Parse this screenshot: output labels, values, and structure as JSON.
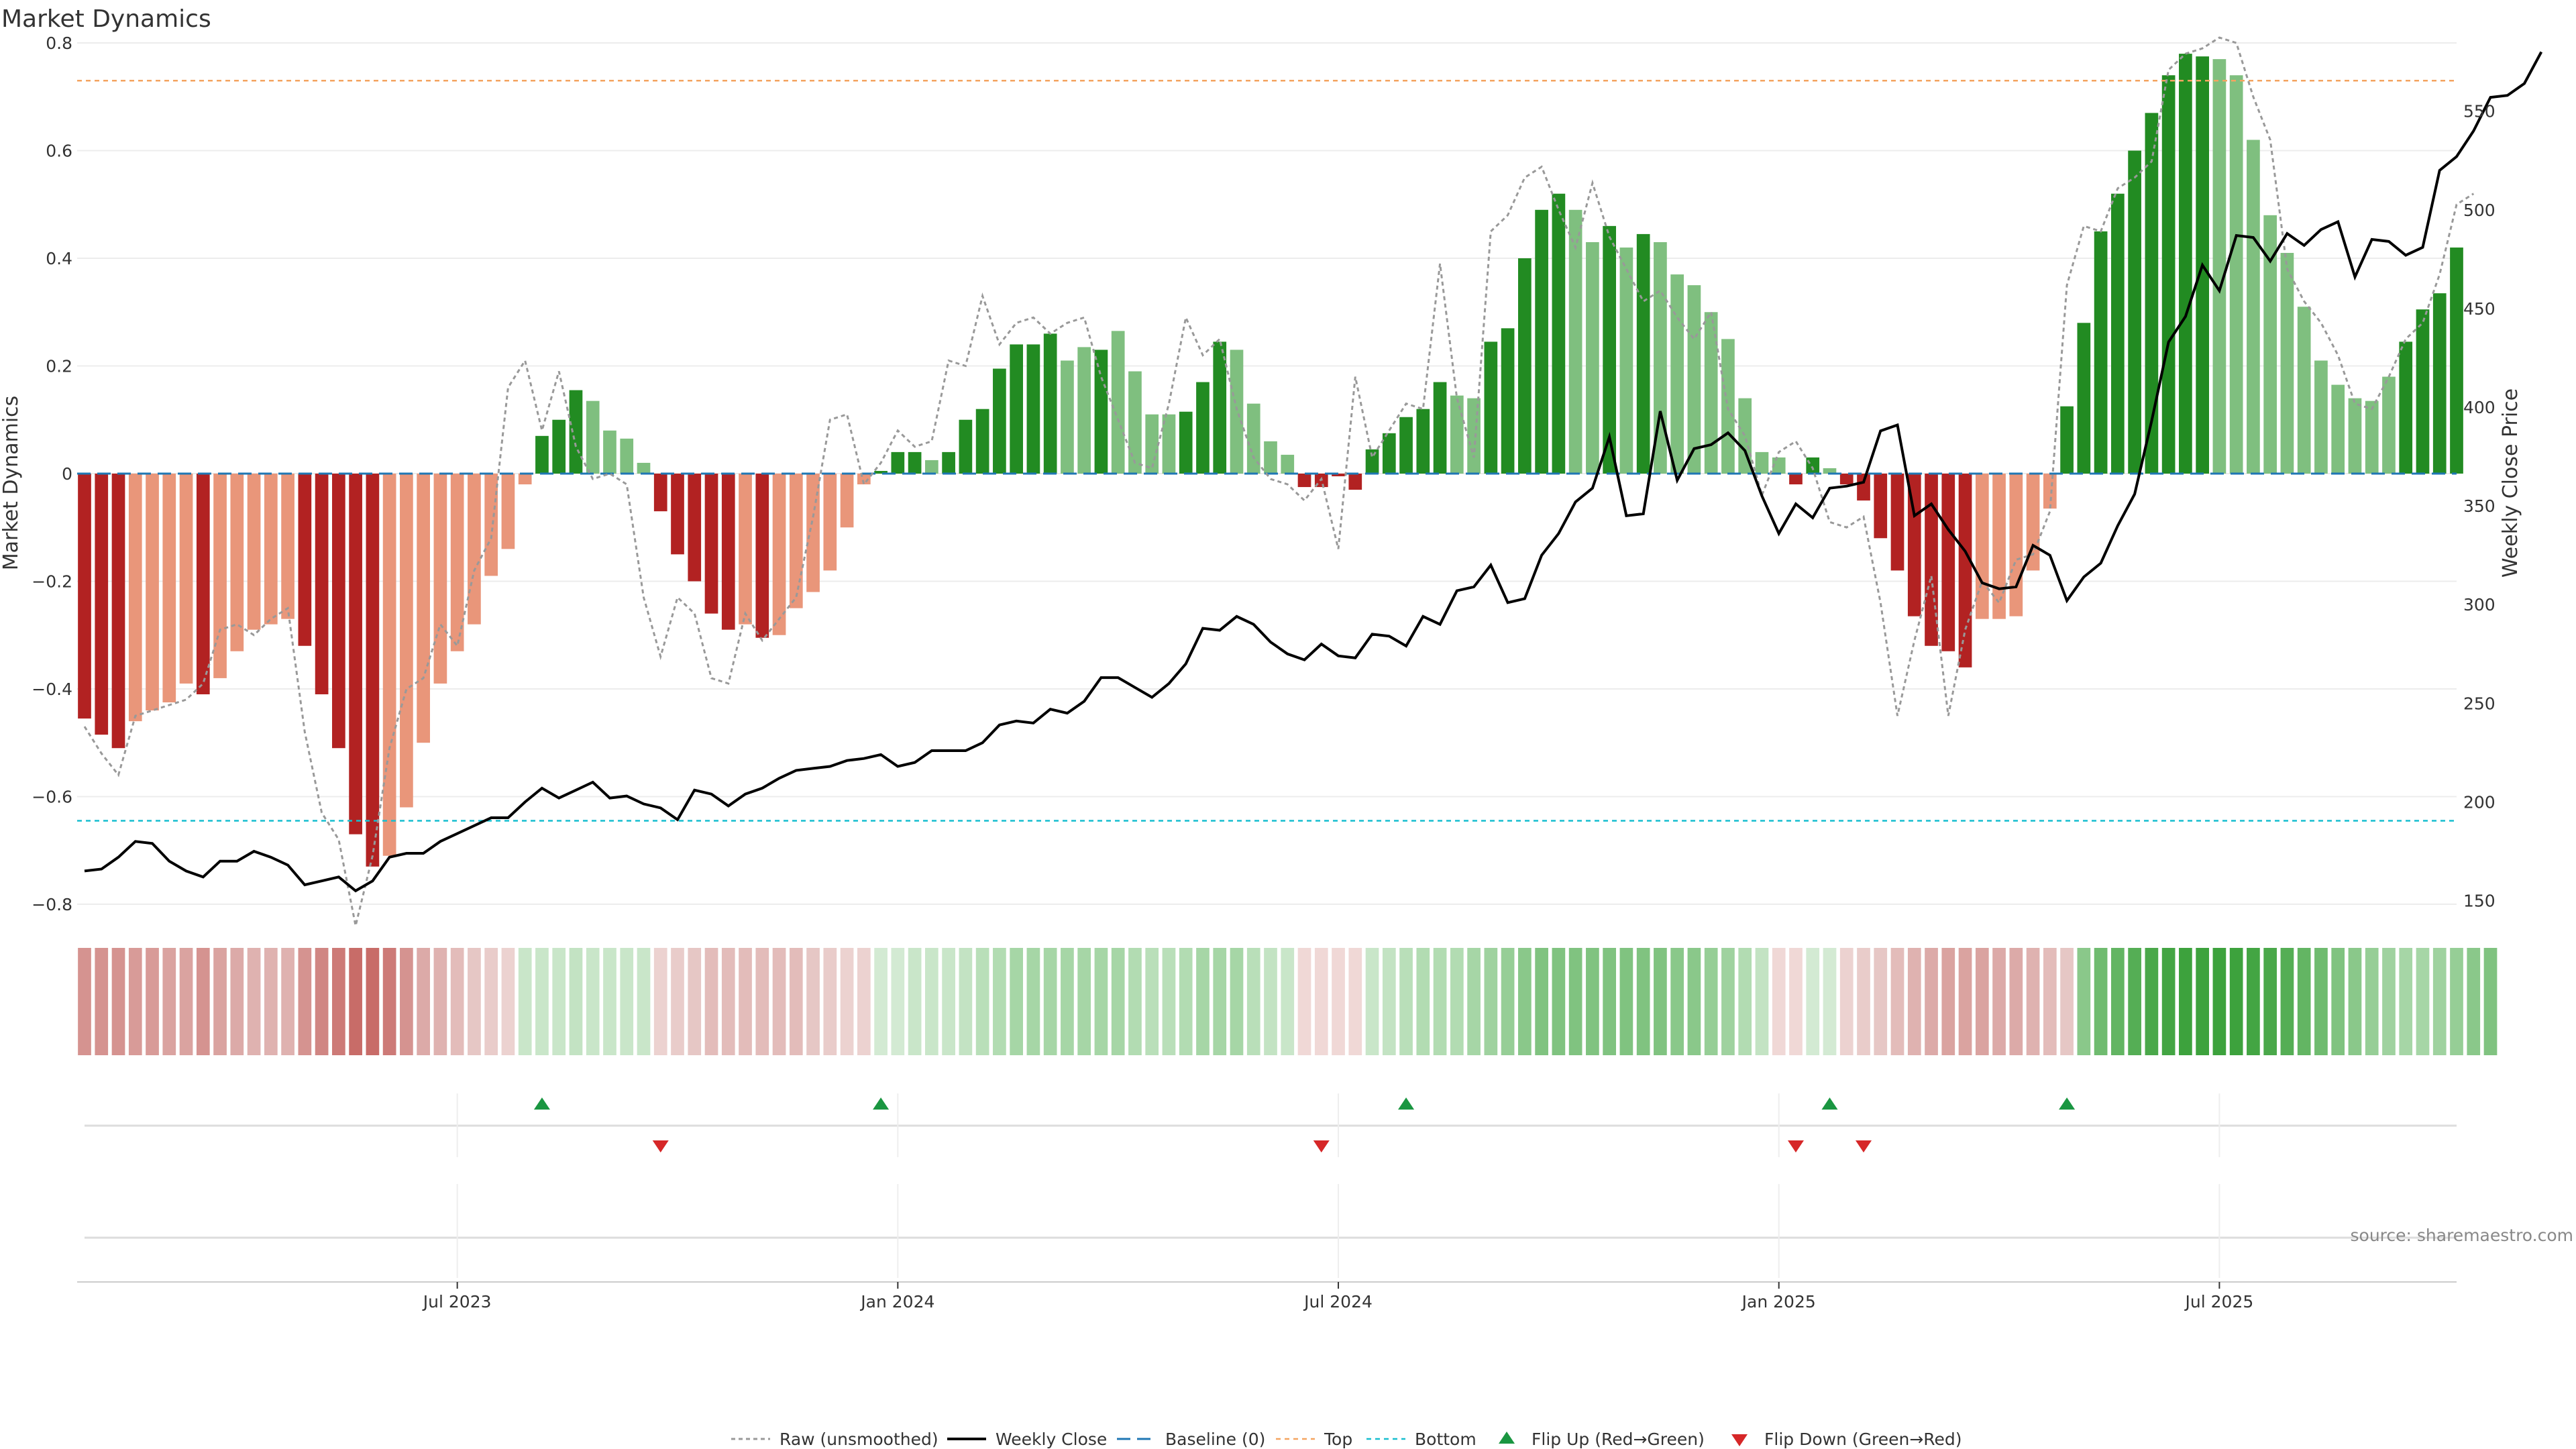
{
  "chart_data": {
    "type": "bar",
    "title": "Market Dynamics",
    "ylabel_left": "Market Dynamics",
    "ylabel_right": "Weekly Close Price",
    "source": "source: sharemaestro.com",
    "ylim_left": [
      -0.83,
      0.82
    ],
    "ylim_right": [
      140,
      590
    ],
    "left_ticks": [
      {
        "v": 0.8,
        "label": "0.8"
      },
      {
        "v": 0.6,
        "label": "0.6"
      },
      {
        "v": 0.4,
        "label": "0.4"
      },
      {
        "v": 0.2,
        "label": "0.2"
      },
      {
        "v": 0,
        "label": "0"
      },
      {
        "v": -0.2,
        "label": "−0.2"
      },
      {
        "v": -0.4,
        "label": "−0.4"
      },
      {
        "v": -0.6,
        "label": "−0.6"
      },
      {
        "v": -0.8,
        "label": "−0.8"
      }
    ],
    "right_ticks": [
      {
        "v": 550,
        "label": "550"
      },
      {
        "v": 500,
        "label": "500"
      },
      {
        "v": 450,
        "label": "450"
      },
      {
        "v": 400,
        "label": "400"
      },
      {
        "v": 350,
        "label": "350"
      },
      {
        "v": 300,
        "label": "300"
      },
      {
        "v": 250,
        "label": "250"
      },
      {
        "v": 200,
        "label": "200"
      },
      {
        "v": 150,
        "label": "150"
      }
    ],
    "x_ticks": [
      {
        "i": 22,
        "label": "Jul 2023"
      },
      {
        "i": 48,
        "label": "Jan 2024"
      },
      {
        "i": 74,
        "label": "Jul 2024"
      },
      {
        "i": 100,
        "label": "Jan 2025"
      },
      {
        "i": 126,
        "label": "Jul 2025"
      }
    ],
    "top_level": 0.73,
    "bottom_level": -0.645,
    "bar_values": [
      -0.455,
      -0.485,
      -0.51,
      -0.46,
      -0.44,
      -0.425,
      -0.39,
      -0.41,
      -0.38,
      -0.33,
      -0.29,
      -0.28,
      -0.27,
      -0.32,
      -0.41,
      -0.51,
      -0.67,
      -0.73,
      -0.71,
      -0.62,
      -0.5,
      -0.39,
      -0.33,
      -0.28,
      -0.19,
      -0.14,
      -0.02,
      0.07,
      0.1,
      0.155,
      0.135,
      0.08,
      0.065,
      0.02,
      -0.07,
      -0.15,
      -0.2,
      -0.26,
      -0.29,
      -0.28,
      -0.305,
      -0.3,
      -0.25,
      -0.22,
      -0.18,
      -0.1,
      -0.02,
      0.005,
      0.04,
      0.04,
      0.025,
      0.04,
      0.1,
      0.12,
      0.195,
      0.24,
      0.24,
      0.26,
      0.21,
      0.235,
      0.23,
      0.265,
      0.19,
      0.11,
      0.11,
      0.115,
      0.17,
      0.245,
      0.23,
      0.13,
      0.06,
      0.035,
      -0.025,
      -0.025,
      -0.005,
      -0.03,
      0.045,
      0.075,
      0.105,
      0.12,
      0.17,
      0.145,
      0.14,
      0.245,
      0.27,
      0.4,
      0.49,
      0.52,
      0.49,
      0.43,
      0.46,
      0.42,
      0.445,
      0.43,
      0.37,
      0.35,
      0.3,
      0.25,
      0.14,
      0.04,
      0.03,
      -0.02,
      0.03,
      0.01,
      -0.02,
      -0.05,
      -0.12,
      -0.18,
      -0.265,
      -0.32,
      -0.33,
      -0.36,
      -0.27,
      -0.27,
      -0.265,
      -0.18,
      -0.065,
      0.125,
      0.28,
      0.45,
      0.52,
      0.6,
      0.67,
      0.74,
      0.78,
      0.775,
      0.77,
      0.74,
      0.62,
      0.48,
      0.41,
      0.31,
      0.21,
      0.165,
      0.14,
      0.135,
      0.18,
      0.245,
      0.305,
      0.335,
      0.42
    ],
    "bar_colors": [
      "#b22222",
      "#b22222",
      "#b22222",
      "#e9967a",
      "#e9967a",
      "#e9967a",
      "#e9967a",
      "#b22222",
      "#e9967a",
      "#e9967a",
      "#e9967a",
      "#e9967a",
      "#e9967a",
      "#b22222",
      "#b22222",
      "#b22222",
      "#b22222",
      "#b22222",
      "#e9967a",
      "#e9967a",
      "#e9967a",
      "#e9967a",
      "#e9967a",
      "#e9967a",
      "#e9967a",
      "#e9967a",
      "#e9967a",
      "#228b22",
      "#228b22",
      "#228b22",
      "#7fbf7f",
      "#7fbf7f",
      "#7fbf7f",
      "#7fbf7f",
      "#b22222",
      "#b22222",
      "#b22222",
      "#b22222",
      "#b22222",
      "#e9967a",
      "#b22222",
      "#e9967a",
      "#e9967a",
      "#e9967a",
      "#e9967a",
      "#e9967a",
      "#e9967a",
      "#228b22",
      "#228b22",
      "#228b22",
      "#7fbf7f",
      "#228b22",
      "#228b22",
      "#228b22",
      "#228b22",
      "#228b22",
      "#228b22",
      "#228b22",
      "#7fbf7f",
      "#7fbf7f",
      "#228b22",
      "#7fbf7f",
      "#7fbf7f",
      "#7fbf7f",
      "#7fbf7f",
      "#228b22",
      "#228b22",
      "#228b22",
      "#7fbf7f",
      "#7fbf7f",
      "#7fbf7f",
      "#7fbf7f",
      "#b22222",
      "#b22222",
      "#b22222",
      "#b22222",
      "#228b22",
      "#228b22",
      "#228b22",
      "#228b22",
      "#228b22",
      "#7fbf7f",
      "#7fbf7f",
      "#228b22",
      "#228b22",
      "#228b22",
      "#228b22",
      "#228b22",
      "#7fbf7f",
      "#7fbf7f",
      "#228b22",
      "#7fbf7f",
      "#228b22",
      "#7fbf7f",
      "#7fbf7f",
      "#7fbf7f",
      "#7fbf7f",
      "#7fbf7f",
      "#7fbf7f",
      "#7fbf7f",
      "#7fbf7f",
      "#b22222",
      "#228b22",
      "#7fbf7f",
      "#b22222",
      "#b22222",
      "#b22222",
      "#b22222",
      "#b22222",
      "#b22222",
      "#b22222",
      "#b22222",
      "#e9967a",
      "#e9967a",
      "#e9967a",
      "#e9967a",
      "#e9967a",
      "#228b22",
      "#228b22",
      "#228b22",
      "#228b22",
      "#228b22",
      "#228b22",
      "#228b22",
      "#228b22",
      "#228b22",
      "#7fbf7f",
      "#7fbf7f",
      "#7fbf7f",
      "#7fbf7f",
      "#7fbf7f",
      "#7fbf7f",
      "#7fbf7f",
      "#7fbf7f",
      "#7fbf7f",
      "#7fbf7f",
      "#7fbf7f",
      "#228b22",
      "#228b22",
      "#228b22",
      "#228b22",
      "#228b22"
    ],
    "raw_values": [
      -0.47,
      -0.52,
      -0.56,
      -0.45,
      -0.44,
      -0.43,
      -0.42,
      -0.39,
      -0.29,
      -0.28,
      -0.3,
      -0.27,
      -0.25,
      -0.48,
      -0.63,
      -0.68,
      -0.84,
      -0.71,
      -0.51,
      -0.4,
      -0.38,
      -0.28,
      -0.32,
      -0.18,
      -0.12,
      0.16,
      0.21,
      0.08,
      0.19,
      0.05,
      -0.01,
      0,
      -0.02,
      -0.23,
      -0.34,
      -0.23,
      -0.26,
      -0.38,
      -0.39,
      -0.26,
      -0.31,
      -0.27,
      -0.23,
      -0.08,
      0.1,
      0.11,
      -0.02,
      0.02,
      0.08,
      0.05,
      0.06,
      0.21,
      0.2,
      0.33,
      0.24,
      0.28,
      0.29,
      0.26,
      0.28,
      0.29,
      0.18,
      0.1,
      0.02,
      0.01,
      0.13,
      0.29,
      0.22,
      0.25,
      0.12,
      0.03,
      -0.01,
      -0.02,
      -0.05,
      -0.01,
      -0.14,
      0.18,
      0.03,
      0.08,
      0.13,
      0.12,
      0.39,
      0.14,
      0.03,
      0.45,
      0.48,
      0.55,
      0.57,
      0.49,
      0.42,
      0.54,
      0.44,
      0.38,
      0.32,
      0.34,
      0.29,
      0.25,
      0.3,
      0.12,
      0.07,
      -0.04,
      0.04,
      0.06,
      0.01,
      -0.09,
      -0.1,
      -0.08,
      -0.24,
      -0.45,
      -0.31,
      -0.19,
      -0.45,
      -0.29,
      -0.2,
      -0.24,
      -0.16,
      -0.15,
      -0.07,
      0.35,
      0.46,
      0.45,
      0.53,
      0.55,
      0.58,
      0.75,
      0.78,
      0.79,
      0.81,
      0.8,
      0.7,
      0.62,
      0.38,
      0.32,
      0.28,
      0.22,
      0.13,
      0.12,
      0.18,
      0.25,
      0.28,
      0.37,
      0.5,
      0.52
    ],
    "close_values": [
      165,
      166,
      172,
      180,
      179,
      170,
      165,
      162,
      170,
      170,
      175,
      172,
      168,
      158,
      160,
      162,
      155,
      160,
      172,
      174,
      174,
      180,
      184,
      188,
      192,
      192,
      200,
      207,
      202,
      206,
      210,
      202,
      203,
      199,
      197,
      191,
      206,
      204,
      198,
      204,
      207,
      212,
      216,
      217,
      218,
      221,
      222,
      224,
      218,
      220,
      226,
      226,
      226,
      230,
      239,
      241,
      240,
      247,
      245,
      251,
      263,
      263,
      258,
      253,
      260,
      270,
      288,
      287,
      294,
      290,
      281,
      275,
      272,
      280,
      274,
      273,
      285,
      284,
      279,
      294,
      290,
      307,
      309,
      320,
      301,
      303,
      325,
      336,
      352,
      359,
      385,
      345,
      346,
      398,
      363,
      379,
      381,
      387,
      378,
      355,
      336,
      351,
      344,
      359,
      360,
      362,
      388,
      391,
      345,
      351,
      338,
      327,
      311,
      308,
      309,
      330,
      325,
      302,
      314,
      321,
      340,
      356,
      393,
      433,
      446,
      472,
      459,
      487,
      486,
      474,
      488,
      482,
      490,
      494,
      466,
      485,
      484,
      477,
      481,
      520,
      527,
      540,
      557,
      558,
      564,
      580
    ],
    "strip_colors": [
      "#d59390",
      "#d59390",
      "#d59390",
      "#d89b98",
      "#d89b98",
      "#daa3a0",
      "#daa3a0",
      "#d59390",
      "#daa3a0",
      "#dcaaa8",
      "#dfb2b0",
      "#dfb2b0",
      "#dfb2b0",
      "#d59390",
      "#d08683",
      "#cd7a77",
      "#c86c68",
      "#c86c68",
      "#cd7a77",
      "#d59390",
      "#dcaaa8",
      "#dfb2b0",
      "#e3bcba",
      "#e6c7c5",
      "#e9ccca",
      "#ecd2d0",
      "#c9e6c9",
      "#c9e6c9",
      "#c9e6c9",
      "#c3e3c3",
      "#c9e6c9",
      "#c9e6c9",
      "#c9e6c9",
      "#c9e6c9",
      "#ecd2d0",
      "#e9ccca",
      "#e6c7c5",
      "#e3bcba",
      "#e3bcba",
      "#e3bcba",
      "#e3bcba",
      "#e3bcba",
      "#e3bcba",
      "#e6c7c5",
      "#e9ccca",
      "#ecd2d0",
      "#ecd2d0",
      "#d3ead3",
      "#d3ead3",
      "#c9e6c9",
      "#c9e6c9",
      "#c9e6c9",
      "#c3e3c3",
      "#b9dfb9",
      "#b2dcb2",
      "#a6d6a6",
      "#a6d6a6",
      "#a6d6a6",
      "#a6d6a6",
      "#a6d6a6",
      "#a6d6a6",
      "#a6d6a6",
      "#b2dcb2",
      "#b9dfb9",
      "#b9dfb9",
      "#b2dcb2",
      "#a6d6a6",
      "#a6d6a6",
      "#a6d6a6",
      "#b9dfb9",
      "#c3e3c3",
      "#c9e6c9",
      "#f0d8d6",
      "#f0d8d6",
      "#f0d8d6",
      "#f0d8d6",
      "#c9e6c9",
      "#c3e3c3",
      "#b9dfb9",
      "#b2dcb2",
      "#b2dcb2",
      "#b2dcb2",
      "#a6d6a6",
      "#9fd29f",
      "#96ce96",
      "#8ac88a",
      "#80c380",
      "#80c380",
      "#80c380",
      "#80c380",
      "#80c380",
      "#80c380",
      "#80c380",
      "#80c380",
      "#8ac88a",
      "#8ac88a",
      "#96ce96",
      "#9fd29f",
      "#b2dcb2",
      "#c3e3c3",
      "#f0d8d6",
      "#f0d8d6",
      "#d3ead3",
      "#d3ead3",
      "#ecd2d0",
      "#e9ccca",
      "#e6c7c5",
      "#e3bcba",
      "#dfb2b0",
      "#dcaaa8",
      "#daa3a0",
      "#daa3a0",
      "#daa3a0",
      "#dcaaa8",
      "#dcaaa8",
      "#dfb2b0",
      "#e3bcba",
      "#e6c7c5",
      "#8ac88a",
      "#6fbb6f",
      "#63b563",
      "#55ae55",
      "#4aa84a",
      "#43a543",
      "#3da23d",
      "#3da23d",
      "#3da23d",
      "#3da23d",
      "#43a543",
      "#4aa84a",
      "#55ae55",
      "#63b563",
      "#6fbb6f",
      "#80c380",
      "#8ac88a",
      "#96ce96",
      "#9fd29f",
      "#a6d6a6",
      "#a6d6a6",
      "#9fd29f",
      "#96ce96",
      "#8ac88a",
      "#80c380"
    ],
    "flip_up_index": [
      27,
      47,
      78,
      103,
      117
    ],
    "flip_down_index": [
      34,
      73,
      101,
      105
    ],
    "legend": [
      {
        "key": "raw",
        "label": "Raw (unsmoothed)"
      },
      {
        "key": "close",
        "label": "Weekly Close"
      },
      {
        "key": "baseline",
        "label": "Baseline (0)"
      },
      {
        "key": "top",
        "label": "Top"
      },
      {
        "key": "bottom",
        "label": "Bottom"
      },
      {
        "key": "flipup",
        "label": "Flip Up (Red→Green)"
      },
      {
        "key": "flipdown",
        "label": "Flip Down (Green→Red)"
      }
    ],
    "colors": {
      "raw": "#999999",
      "close": "#000000",
      "baseline": "#1f77b4",
      "top": "#f4a460",
      "bottom": "#17becf",
      "flip_up": "#1a9641",
      "flip_down": "#d62728"
    }
  }
}
